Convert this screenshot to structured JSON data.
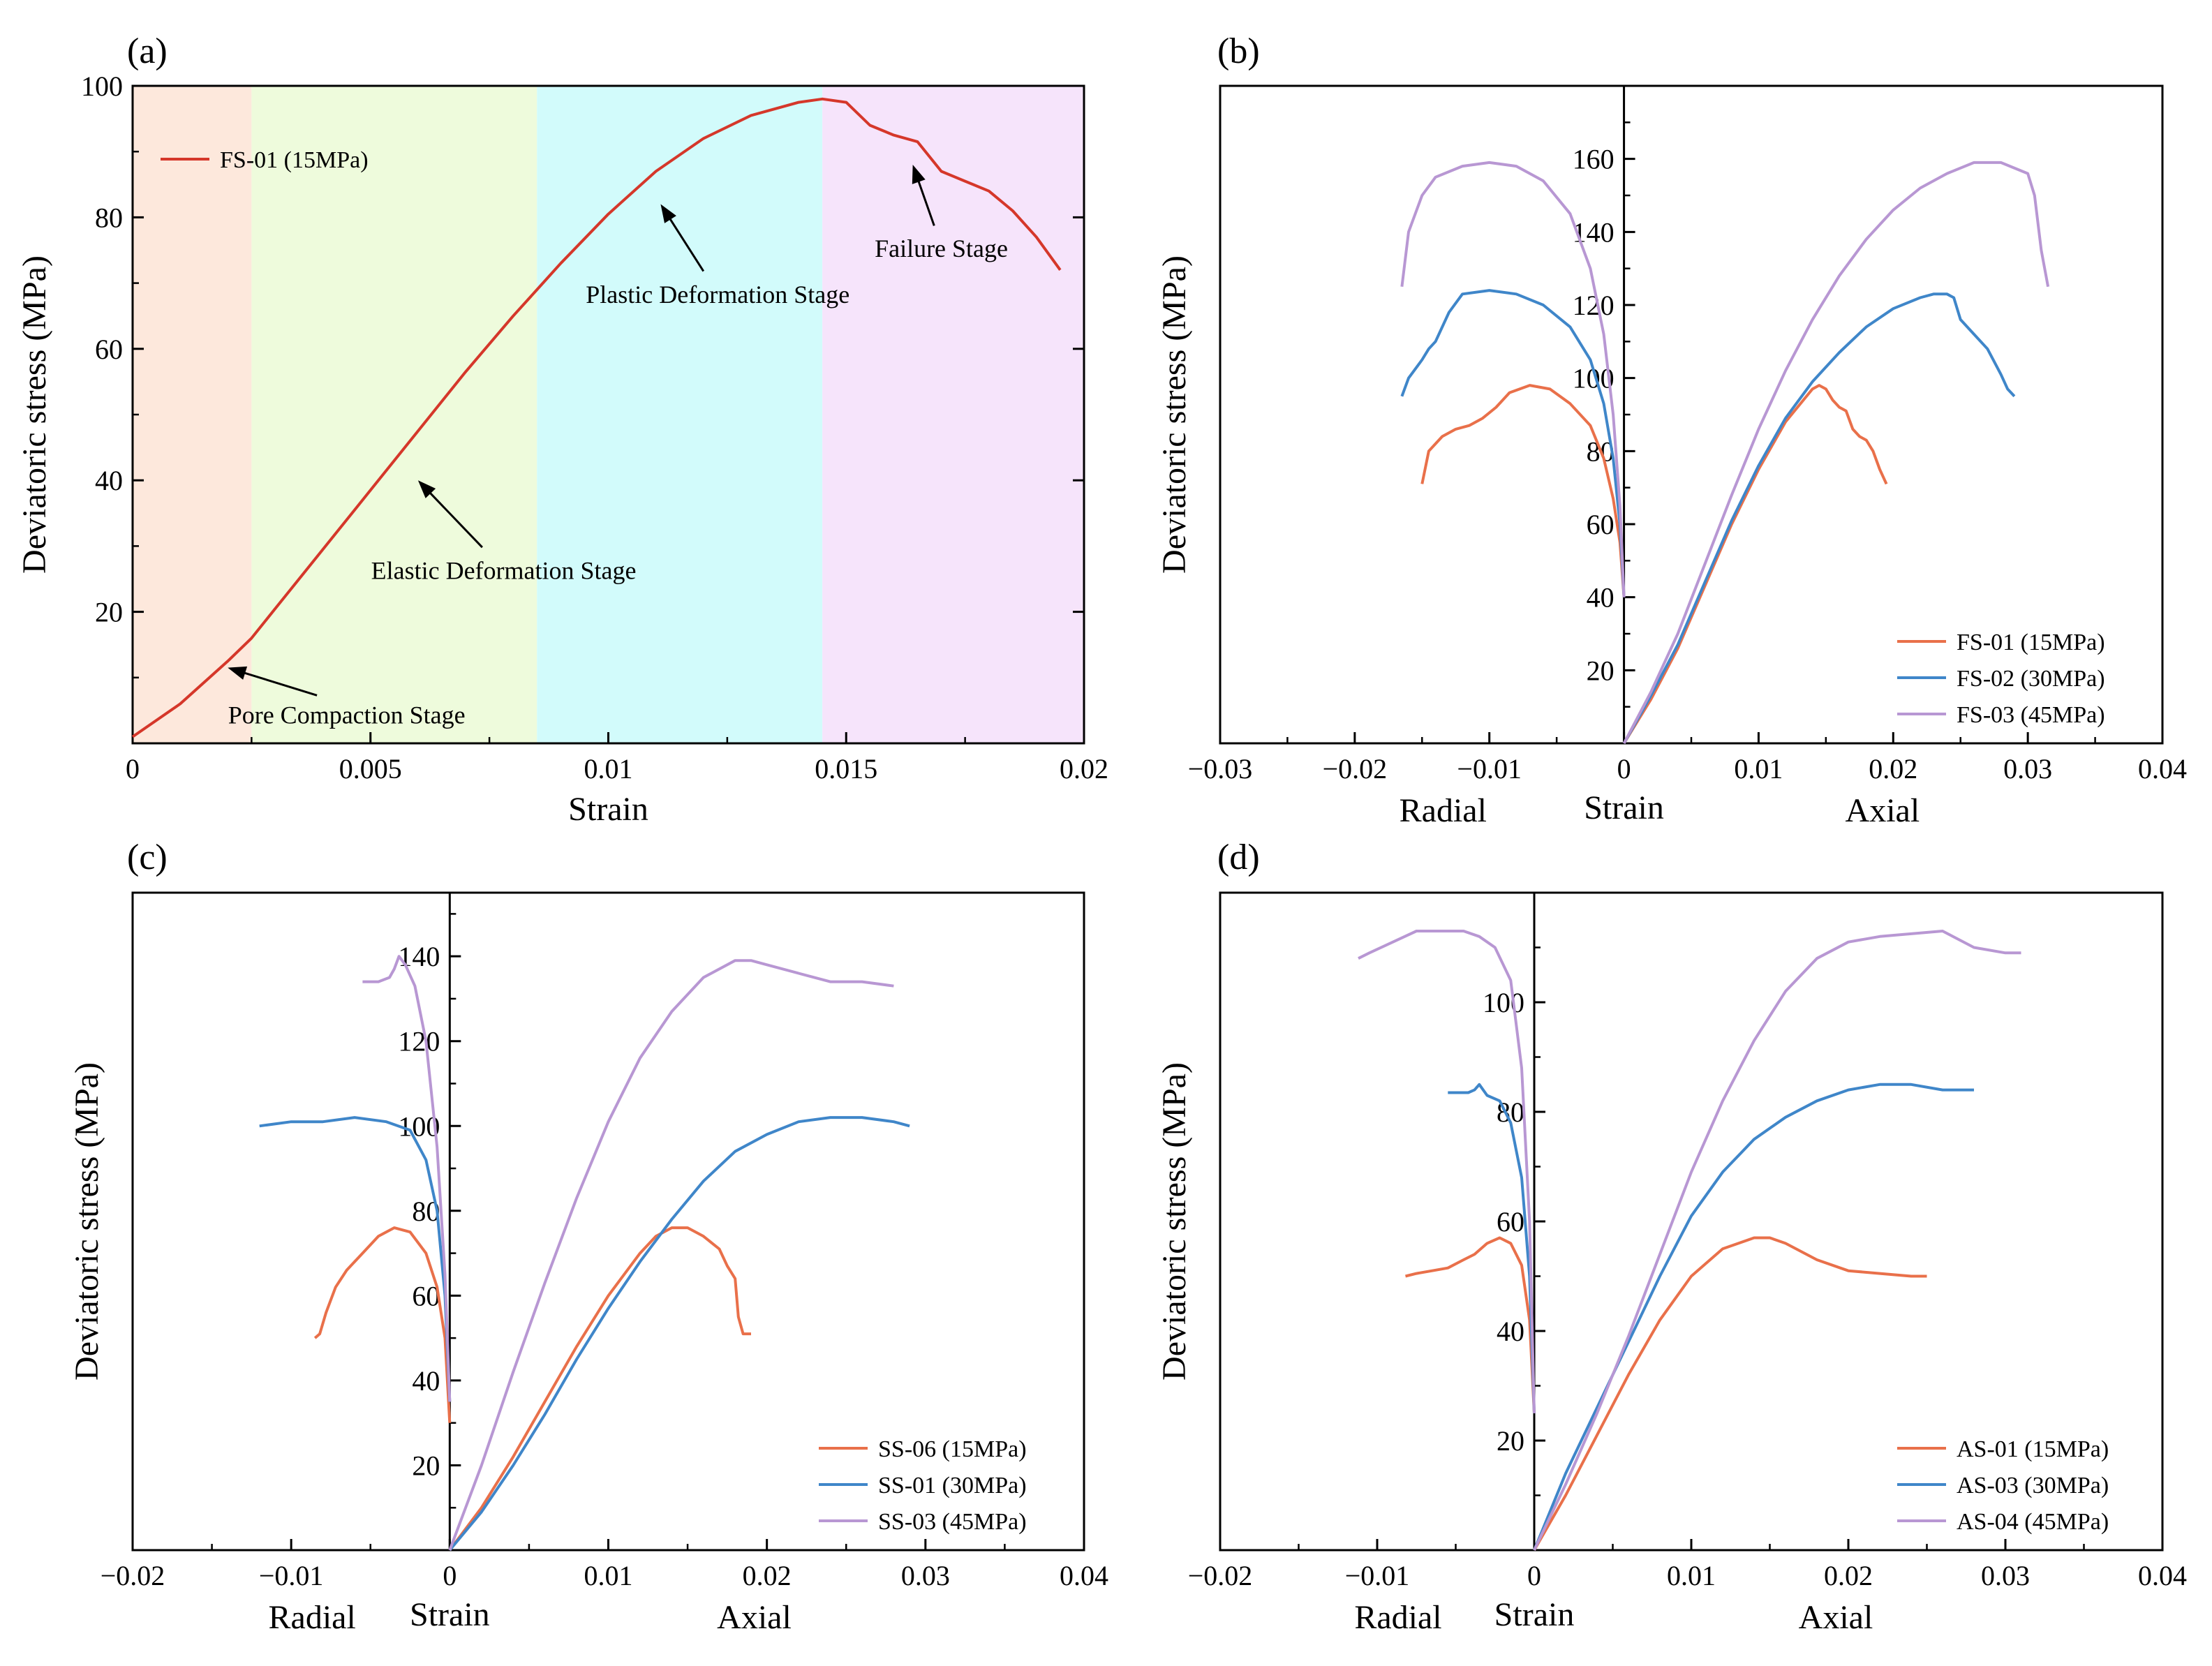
{
  "chart_data": [
    {
      "id": "a",
      "type": "line",
      "panel_label": "(a)",
      "xlabel": "Strain",
      "ylabel": "Deviatoric stress (MPa)",
      "xlim": [
        0,
        0.02
      ],
      "ylim": [
        0,
        100
      ],
      "xticks": [
        0,
        0.005,
        0.01,
        0.015,
        0.02
      ],
      "xtick_labels": [
        "0",
        "0.005",
        "0.01",
        "0.015",
        "0.02"
      ],
      "yticks": [
        20,
        40,
        60,
        80,
        100
      ],
      "ytick_labels": [
        "20",
        "40",
        "60",
        "80",
        "100"
      ],
      "legend": "top-left",
      "stages": [
        {
          "name": "Pore Compaction Stage",
          "x0": 0,
          "x1": 0.0025,
          "color": "#fde8dc"
        },
        {
          "name": "Elastic Deformation Stage",
          "x0": 0.0025,
          "x1": 0.0085,
          "color": "#eefbdc"
        },
        {
          "name": "Plastic Deformation Stage",
          "x0": 0.0085,
          "x1": 0.0145,
          "color": "#d2fbfb"
        },
        {
          "name": "Failure Stage",
          "x0": 0.0145,
          "x1": 0.02,
          "color": "#f6e4fb"
        }
      ],
      "annotations": [
        {
          "text": "Pore Compaction Stage",
          "x": 0.0045,
          "y": 3,
          "ax": 0.002,
          "ay": 11.5
        },
        {
          "text": "Elastic Deformation Stage",
          "x": 0.0078,
          "y": 25,
          "ax": 0.006,
          "ay": 40
        },
        {
          "text": "Plastic Deformation Stage",
          "x": 0.0123,
          "y": 67,
          "ax": 0.0111,
          "ay": 82
        },
        {
          "text": "Failure Stage",
          "x": 0.017,
          "y": 74,
          "ax": 0.0164,
          "ay": 88
        }
      ],
      "series": [
        {
          "name": "FS-01 (15MPa)",
          "color": "#d5372a",
          "x": [
            0,
            0.001,
            0.002,
            0.0025,
            0.003,
            0.004,
            0.005,
            0.006,
            0.007,
            0.008,
            0.0085,
            0.009,
            0.01,
            0.011,
            0.012,
            0.013,
            0.014,
            0.0145,
            0.015,
            0.0155,
            0.016,
            0.0165,
            0.017,
            0.0175,
            0.018,
            0.0185,
            0.019,
            0.0195
          ],
          "y": [
            1,
            6,
            12.5,
            16,
            20.5,
            29.5,
            38.5,
            47.5,
            56.5,
            65,
            69,
            73,
            80.5,
            87,
            92,
            95.5,
            97.5,
            98,
            97.5,
            94,
            92.5,
            91.5,
            87,
            85.5,
            84,
            81,
            77,
            72
          ]
        }
      ]
    },
    {
      "id": "b",
      "type": "line",
      "panel_label": "(b)",
      "xlabel": "Strain",
      "ylabel": "Deviatoric stress (MPa)",
      "sublabels": {
        "left": "Radial",
        "right": "Axial"
      },
      "xlim": [
        -0.03,
        0.04
      ],
      "ylim": [
        0,
        180
      ],
      "xticks": [
        -0.03,
        -0.02,
        -0.01,
        0,
        0.01,
        0.02,
        0.03,
        0.04
      ],
      "xtick_labels": [
        "−0.03",
        "−0.02",
        "−0.01",
        "0",
        "0.01",
        "0.02",
        "0.03",
        "0.04"
      ],
      "yticks": [
        20,
        40,
        60,
        80,
        100,
        120,
        140,
        160
      ],
      "ytick_labels": [
        "20",
        "40",
        "60",
        "80",
        "100",
        "120",
        "140",
        "160"
      ],
      "legend": "bottom-right",
      "series": [
        {
          "name": "FS-01 (15MPa)",
          "color": "#e9704a",
          "x": [
            0,
            0.002,
            0.004,
            0.006,
            0.008,
            0.01,
            0.012,
            0.014,
            0.0145,
            0.015,
            0.0155,
            0.016,
            0.0165,
            0.017,
            0.0175,
            0.018,
            0.0185,
            0.019,
            0.0195
          ],
          "y": [
            0,
            12,
            26,
            43,
            60,
            75,
            88,
            97,
            98,
            97,
            94,
            92,
            91,
            86,
            84,
            83,
            80,
            75,
            71
          ],
          "rx": [
            0,
            -0.0003,
            -0.0008,
            -0.0015,
            -0.0025,
            -0.004,
            -0.0055,
            -0.007,
            -0.0085,
            -0.0095,
            -0.0105,
            -0.0115,
            -0.0125,
            -0.0135,
            -0.0145,
            -0.015
          ],
          "ry": [
            40,
            55,
            67,
            78,
            87,
            93,
            97,
            98,
            96,
            92,
            89,
            87,
            86,
            84,
            80,
            71
          ]
        },
        {
          "name": "FS-02 (30MPa)",
          "color": "#3f86c9",
          "x": [
            0,
            0.002,
            0.004,
            0.006,
            0.008,
            0.01,
            0.012,
            0.014,
            0.016,
            0.018,
            0.02,
            0.022,
            0.023,
            0.024,
            0.0245,
            0.025,
            0.026,
            0.027,
            0.028,
            0.0285,
            0.029
          ],
          "y": [
            0,
            13,
            27,
            44,
            61,
            76,
            89,
            99,
            107,
            114,
            119,
            122,
            123,
            123,
            122,
            116,
            112,
            108,
            101,
            97,
            95
          ],
          "rx": [
            0,
            -0.0003,
            -0.0008,
            -0.0015,
            -0.0025,
            -0.004,
            -0.006,
            -0.008,
            -0.01,
            -0.012,
            -0.013,
            -0.014,
            -0.0145,
            -0.015,
            -0.016,
            -0.0165
          ],
          "ry": [
            40,
            60,
            78,
            93,
            105,
            114,
            120,
            123,
            124,
            123,
            118,
            110,
            108,
            105,
            100,
            95
          ]
        },
        {
          "name": "FS-03 (45MPa)",
          "color": "#b897d3",
          "x": [
            0,
            0.002,
            0.004,
            0.006,
            0.008,
            0.01,
            0.012,
            0.014,
            0.016,
            0.018,
            0.02,
            0.022,
            0.024,
            0.026,
            0.028,
            0.03,
            0.0305,
            0.031,
            0.0315
          ],
          "y": [
            0,
            14,
            30,
            49,
            68,
            86,
            102,
            116,
            128,
            138,
            146,
            152,
            156,
            159,
            159,
            156,
            150,
            135,
            125
          ],
          "rx": [
            0,
            -0.0003,
            -0.0008,
            -0.0015,
            -0.0025,
            -0.004,
            -0.006,
            -0.008,
            -0.01,
            -0.012,
            -0.014,
            -0.015,
            -0.016,
            -0.0165
          ],
          "ry": [
            40,
            65,
            90,
            112,
            130,
            145,
            154,
            158,
            159,
            158,
            155,
            150,
            140,
            125
          ]
        }
      ]
    },
    {
      "id": "c",
      "type": "line",
      "panel_label": "(c)",
      "xlabel": "Strain",
      "ylabel": "Deviatoric stress (MPa)",
      "sublabels": {
        "left": "Radial",
        "right": "Axial"
      },
      "xlim": [
        -0.02,
        0.04
      ],
      "ylim": [
        0,
        155
      ],
      "xticks": [
        -0.02,
        -0.01,
        0,
        0.01,
        0.02,
        0.03,
        0.04
      ],
      "xtick_labels": [
        "−0.02",
        "−0.01",
        "0",
        "0.01",
        "0.02",
        "0.03",
        "0.04"
      ],
      "yticks": [
        20,
        40,
        60,
        80,
        100,
        120,
        140
      ],
      "ytick_labels": [
        "20",
        "40",
        "60",
        "80",
        "100",
        "120",
        "140"
      ],
      "legend": "bottom-right",
      "series": [
        {
          "name": "SS-06 (15MPa)",
          "color": "#e9704a",
          "x": [
            0,
            0.002,
            0.004,
            0.006,
            0.008,
            0.01,
            0.012,
            0.013,
            0.014,
            0.015,
            0.016,
            0.017,
            0.0175,
            0.018,
            0.0182,
            0.0185,
            0.019
          ],
          "y": [
            0,
            10,
            22,
            35,
            48,
            60,
            70,
            74,
            76,
            76,
            74,
            71,
            67,
            64,
            55,
            51,
            51
          ],
          "rx": [
            0,
            -0.0003,
            -0.0008,
            -0.0015,
            -0.0025,
            -0.0035,
            -0.0045,
            -0.0055,
            -0.0065,
            -0.0072,
            -0.0078,
            -0.0082,
            -0.0085
          ],
          "ry": [
            30,
            50,
            62,
            70,
            75,
            76,
            74,
            70,
            66,
            62,
            56,
            51,
            50
          ]
        },
        {
          "name": "SS-01 (30MPa)",
          "color": "#3f86c9",
          "x": [
            0,
            0.002,
            0.004,
            0.006,
            0.008,
            0.01,
            0.012,
            0.014,
            0.016,
            0.018,
            0.02,
            0.022,
            0.024,
            0.026,
            0.028,
            0.029
          ],
          "y": [
            0,
            9,
            20,
            32,
            45,
            57,
            68,
            78,
            87,
            94,
            98,
            101,
            102,
            102,
            101,
            100
          ],
          "rx": [
            0,
            -0.0003,
            -0.0008,
            -0.0015,
            -0.0025,
            -0.004,
            -0.006,
            -0.008,
            -0.01,
            -0.012
          ],
          "ry": [
            35,
            60,
            80,
            92,
            99,
            101,
            102,
            101,
            101,
            100
          ]
        },
        {
          "name": "SS-03 (45MPa)",
          "color": "#b897d3",
          "x": [
            0,
            0.002,
            0.004,
            0.006,
            0.008,
            0.01,
            0.012,
            0.014,
            0.016,
            0.018,
            0.019,
            0.02,
            0.022,
            0.024,
            0.026,
            0.028
          ],
          "y": [
            0,
            20,
            42,
            63,
            83,
            101,
            116,
            127,
            135,
            139,
            139,
            138,
            136,
            134,
            134,
            133
          ],
          "rx": [
            0,
            -0.0003,
            -0.0008,
            -0.0015,
            -0.0022,
            -0.0028,
            -0.0032,
            -0.0035,
            -0.0038,
            -0.0045,
            -0.0055
          ],
          "ry": [
            35,
            65,
            95,
            120,
            133,
            138,
            140,
            137,
            135,
            134,
            134
          ]
        }
      ]
    },
    {
      "id": "d",
      "type": "line",
      "panel_label": "(d)",
      "xlabel": "Strain",
      "ylabel": "Deviatoric stress (MPa)",
      "sublabels": {
        "left": "Radial",
        "right": "Axial"
      },
      "xlim": [
        -0.02,
        0.04
      ],
      "ylim": [
        0,
        120
      ],
      "xticks": [
        -0.02,
        -0.01,
        0,
        0.01,
        0.02,
        0.03,
        0.04
      ],
      "xtick_labels": [
        "−0.02",
        "−0.01",
        "0",
        "0.01",
        "0.02",
        "0.03",
        "0.04"
      ],
      "yticks": [
        20,
        40,
        60,
        80,
        100
      ],
      "ytick_labels": [
        "20",
        "40",
        "60",
        "80",
        "100"
      ],
      "legend": "bottom-right",
      "series": [
        {
          "name": "AS-01 (15MPa)",
          "color": "#e9704a",
          "x": [
            0,
            0.002,
            0.004,
            0.006,
            0.008,
            0.01,
            0.012,
            0.014,
            0.015,
            0.016,
            0.018,
            0.02,
            0.022,
            0.024,
            0.025
          ],
          "y": [
            0,
            10,
            21,
            32,
            42,
            50,
            55,
            57,
            57,
            56,
            53,
            51,
            50.5,
            50,
            50
          ],
          "rx": [
            0,
            -0.0003,
            -0.0008,
            -0.0015,
            -0.0022,
            -0.003,
            -0.0038,
            -0.0045,
            -0.0055,
            -0.0065,
            -0.0075,
            -0.0082
          ],
          "ry": [
            25,
            42,
            52,
            56,
            57,
            56,
            54,
            53,
            51.5,
            51,
            50.5,
            50
          ]
        },
        {
          "name": "AS-03 (30MPa)",
          "color": "#3f86c9",
          "x": [
            0,
            0.002,
            0.004,
            0.006,
            0.008,
            0.01,
            0.012,
            0.014,
            0.016,
            0.018,
            0.02,
            0.022,
            0.024,
            0.026,
            0.028
          ],
          "y": [
            0,
            14,
            26,
            38,
            50,
            61,
            69,
            75,
            79,
            82,
            84,
            85,
            85,
            84,
            84
          ],
          "rx": [
            0,
            -0.0003,
            -0.0008,
            -0.0015,
            -0.0022,
            -0.003,
            -0.0035,
            -0.0038,
            -0.0042,
            -0.0048,
            -0.0055
          ],
          "ry": [
            25,
            50,
            68,
            78,
            82,
            83,
            85,
            84,
            83.5,
            83.5,
            83.5
          ]
        },
        {
          "name": "AS-04 (45MPa)",
          "color": "#b897d3",
          "x": [
            0,
            0.002,
            0.004,
            0.006,
            0.008,
            0.01,
            0.012,
            0.014,
            0.016,
            0.018,
            0.02,
            0.022,
            0.024,
            0.026,
            0.028,
            0.03,
            0.031
          ],
          "y": [
            0,
            12,
            25,
            39,
            54,
            69,
            82,
            93,
            102,
            108,
            111,
            112,
            112.5,
            113,
            110,
            109,
            109
          ],
          "rx": [
            0,
            -0.0003,
            -0.0008,
            -0.0015,
            -0.0025,
            -0.0035,
            -0.0045,
            -0.006,
            -0.0075,
            -0.009,
            -0.0105,
            -0.0112
          ],
          "ry": [
            25,
            60,
            88,
            104,
            110,
            112,
            113,
            113,
            113,
            111,
            109,
            108
          ]
        }
      ]
    }
  ]
}
